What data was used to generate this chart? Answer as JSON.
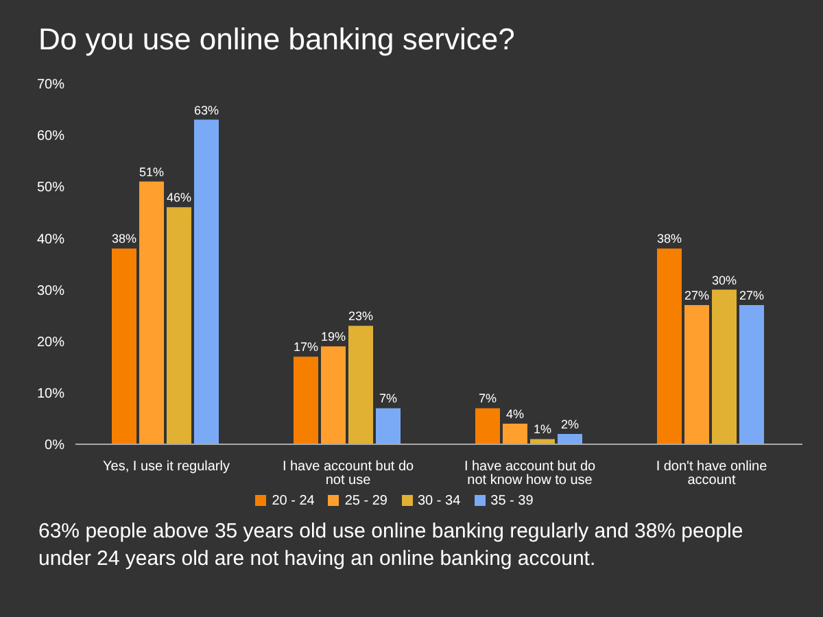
{
  "chart_data": {
    "type": "bar",
    "title": "Do you use online banking service?",
    "categories": [
      "Yes, I use it regularly",
      "I have account but do not use",
      "I have account but do not know how to use",
      "I don't have online account"
    ],
    "series": [
      {
        "name": "20 - 24",
        "color": "#f77f00",
        "values": [
          38,
          17,
          7,
          38
        ],
        "value_labels": [
          "38%",
          "17%",
          "7%",
          "38%"
        ]
      },
      {
        "name": "25 - 29",
        "color": "#ff9f2e",
        "values": [
          51,
          19,
          4,
          27
        ],
        "value_labels": [
          "51%",
          "19%",
          "4%",
          "27%"
        ]
      },
      {
        "name": "30 - 34",
        "color": "#e0b133",
        "values": [
          46,
          23,
          1,
          30
        ],
        "value_labels": [
          "46%",
          "23%",
          "1%",
          "30%"
        ]
      },
      {
        "name": "35 - 39",
        "color": "#7aaaf6",
        "values": [
          63,
          7,
          2,
          27
        ],
        "value_labels": [
          "63%",
          "7%",
          "2%",
          "27%"
        ]
      }
    ],
    "ylim": [
      0,
      70
    ],
    "yticks": [
      {
        "value": 0,
        "label": "0%"
      },
      {
        "value": 10,
        "label": "10%"
      },
      {
        "value": 20,
        "label": "20%"
      },
      {
        "value": 30,
        "label": "30%"
      },
      {
        "value": 40,
        "label": "40%"
      },
      {
        "value": 50,
        "label": "50%"
      },
      {
        "value": 60,
        "label": "60%"
      },
      {
        "value": 70,
        "label": "70%"
      }
    ],
    "grid": false,
    "legend": "bottom",
    "annotations": [
      "63% people above 35 years old use online banking regularly and 38% people under 24 years old are not having an online banking account."
    ]
  }
}
